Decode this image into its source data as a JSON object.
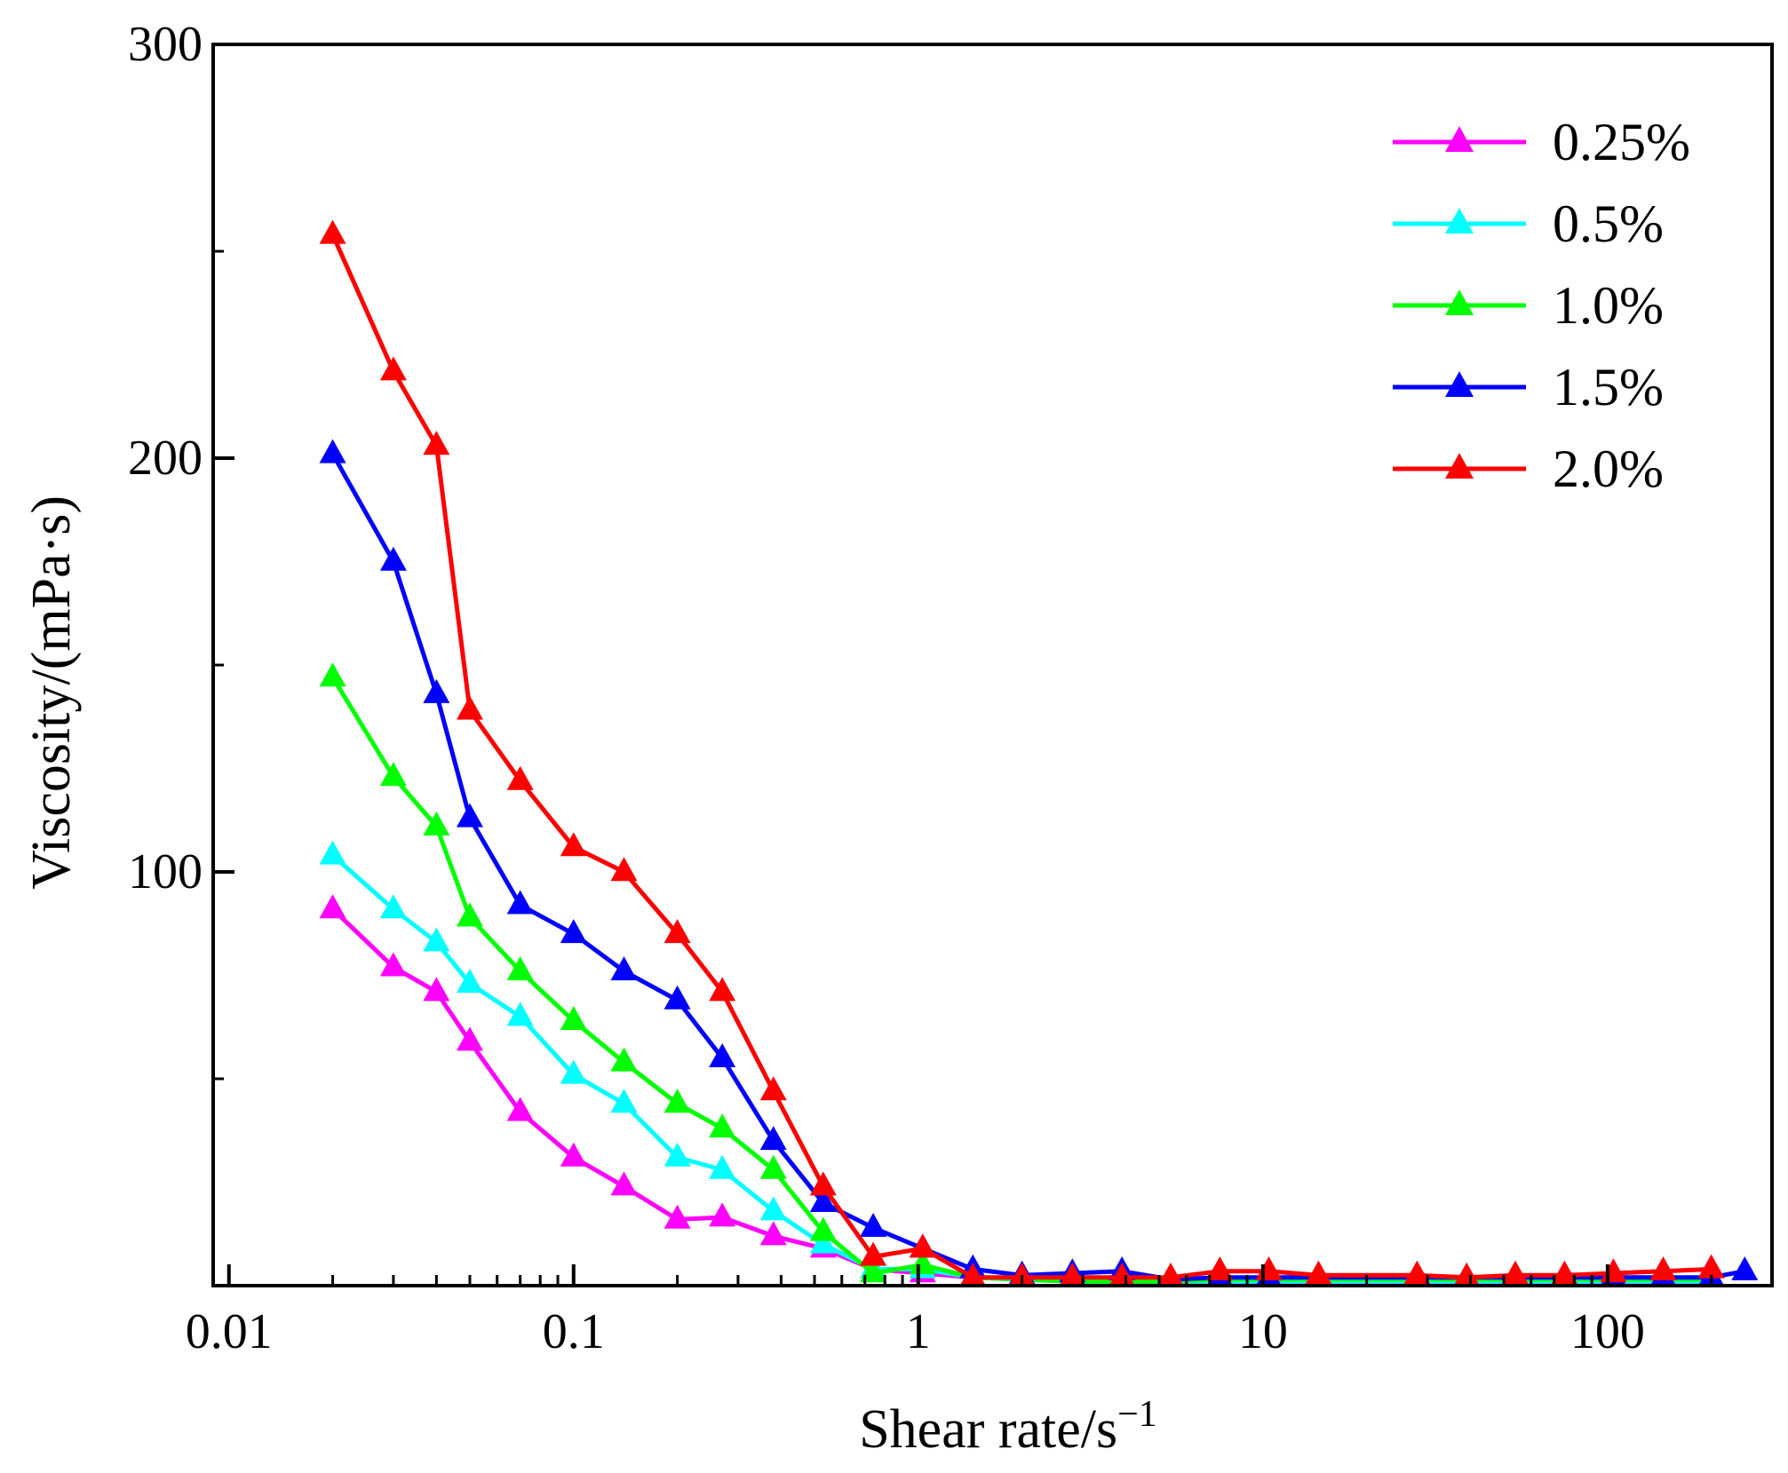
{
  "chart_data": {
    "type": "line",
    "title": "",
    "xlabel": "Shear rate/s",
    "xlabel_sup": "−1",
    "ylabel": "Viscosity/(mPa·s)",
    "xscale": "log",
    "xlim": [
      0.009,
      300
    ],
    "ylim": [
      0,
      300
    ],
    "xticks": [
      0.01,
      0.1,
      1,
      10,
      100
    ],
    "xtick_labels": [
      "0.01",
      "0.1",
      "1",
      "10",
      "100"
    ],
    "yticks": [
      100,
      200,
      300
    ],
    "ytick_labels": [
      "100",
      "200",
      "300"
    ],
    "yminor_ticks": [
      50,
      150,
      250
    ],
    "grid": false,
    "legend_position": "top-right",
    "marker": "triangle",
    "series": [
      {
        "name": "0.25%",
        "color": "#ff00ff",
        "x": [
          0.02,
          0.03,
          0.04,
          0.05,
          0.07,
          0.1,
          0.14,
          0.2,
          0.27,
          0.38,
          0.53,
          0.74,
          1.03,
          1.44,
          2.0,
          2.8,
          3.9,
          5.4,
          7.5,
          10.4,
          14.5,
          28,
          39,
          54,
          75,
          104,
          145,
          200
        ],
        "values": [
          91,
          77,
          71,
          59,
          42,
          31,
          24,
          16,
          16.5,
          12,
          9,
          4,
          3,
          2,
          1.5,
          1,
          1,
          0.8,
          0.8,
          0.8,
          0.8,
          0.8,
          0.8,
          0.8,
          0.8,
          0.8,
          0.8,
          0.8
        ]
      },
      {
        "name": "0.5%",
        "color": "#00ffff",
        "x": [
          0.02,
          0.03,
          0.04,
          0.05,
          0.07,
          0.1,
          0.14,
          0.2,
          0.27,
          0.38,
          0.53,
          0.74,
          1.03,
          1.44,
          2.0,
          2.8,
          3.9,
          5.4,
          7.5,
          10.4,
          14.5,
          28,
          39,
          54,
          75,
          104,
          145,
          200
        ],
        "values": [
          104,
          91,
          83,
          73,
          65,
          51,
          44,
          31,
          28,
          18,
          10,
          4,
          4,
          2,
          1.5,
          1,
          1,
          1,
          1,
          1,
          1,
          1,
          1,
          1,
          1,
          1,
          1,
          1
        ]
      },
      {
        "name": "1.0%",
        "color": "#00ff00",
        "x": [
          0.02,
          0.03,
          0.04,
          0.05,
          0.07,
          0.1,
          0.14,
          0.2,
          0.27,
          0.38,
          0.53,
          0.74,
          1.03,
          1.44,
          2.0,
          2.8,
          3.9,
          5.4,
          7.5,
          10.4,
          14.5,
          28,
          39,
          54,
          75,
          104,
          145,
          200
        ],
        "values": [
          147,
          123,
          111,
          89,
          76,
          64,
          54,
          44,
          38,
          28,
          13,
          3,
          5,
          2,
          1.5,
          1,
          1,
          1,
          1.5,
          1.5,
          1.5,
          1.5,
          1.5,
          1.5,
          1.5,
          1.5,
          1.5,
          1.5
        ]
      },
      {
        "name": "1.5%",
        "color": "#0000ff",
        "x": [
          0.02,
          0.03,
          0.04,
          0.05,
          0.07,
          0.1,
          0.14,
          0.2,
          0.27,
          0.38,
          0.53,
          0.74,
          1.03,
          1.44,
          2.0,
          2.8,
          3.9,
          5.4,
          7.5,
          10.4,
          14.5,
          28,
          39,
          54,
          75,
          104,
          145,
          200,
          250
        ],
        "values": [
          201,
          175,
          143,
          113,
          92,
          85,
          76,
          69,
          55,
          35,
          20,
          14,
          9,
          4,
          2.5,
          3,
          3.5,
          1.5,
          2,
          2,
          2,
          2,
          2,
          2,
          2,
          2,
          2,
          2,
          3.5
        ]
      },
      {
        "name": "2.0%",
        "color": "#ff0000",
        "x": [
          0.02,
          0.03,
          0.04,
          0.05,
          0.07,
          0.1,
          0.14,
          0.2,
          0.27,
          0.38,
          0.53,
          0.74,
          1.03,
          1.44,
          2.0,
          2.8,
          3.9,
          5.4,
          7.5,
          10.4,
          14.5,
          28,
          39,
          54,
          75,
          104,
          145,
          200
        ],
        "values": [
          254,
          221,
          203,
          139,
          122,
          106,
          100,
          85,
          71,
          47,
          24,
          7,
          9,
          2,
          2,
          2,
          2,
          2,
          3.5,
          3.5,
          2.5,
          2.5,
          2,
          2.5,
          2.5,
          3,
          3.5,
          4
        ]
      }
    ]
  }
}
